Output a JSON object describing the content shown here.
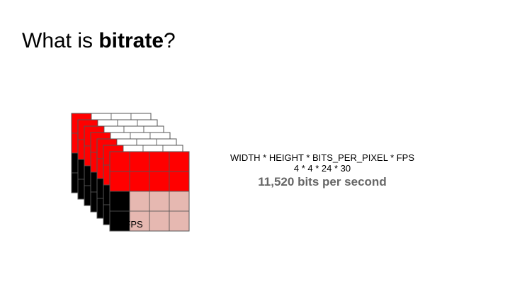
{
  "title": {
    "prefix": "What is ",
    "emphasis": "bitrate",
    "suffix": "?"
  },
  "diagram": {
    "fps_label": "30 FPS",
    "grid_size": 4,
    "frame_count": 7,
    "colors": {
      "red": "#ff0000",
      "black": "#000000",
      "pink": "#e6b8b1",
      "white": "#ffffff",
      "grid_line": "#555555"
    },
    "front_frame_cells": [
      [
        "red",
        "red",
        "red",
        "red"
      ],
      [
        "red",
        "red",
        "red",
        "red"
      ],
      [
        "black",
        "pink",
        "pink",
        "pink"
      ],
      [
        "black",
        "pink",
        "pink",
        "pink"
      ]
    ],
    "back_frame_cells": [
      [
        "red",
        "white",
        "white",
        "white"
      ],
      [
        "red",
        "red",
        "white",
        "white"
      ],
      [
        "black",
        "red",
        "red",
        "red"
      ],
      [
        "black",
        "black",
        "red",
        "white"
      ]
    ]
  },
  "formula": {
    "expression": "WIDTH * HEIGHT * BITS_PER_PIXEL * FPS",
    "values": "4 * 4 * 24 * 30",
    "result": "11,520 bits per second"
  }
}
